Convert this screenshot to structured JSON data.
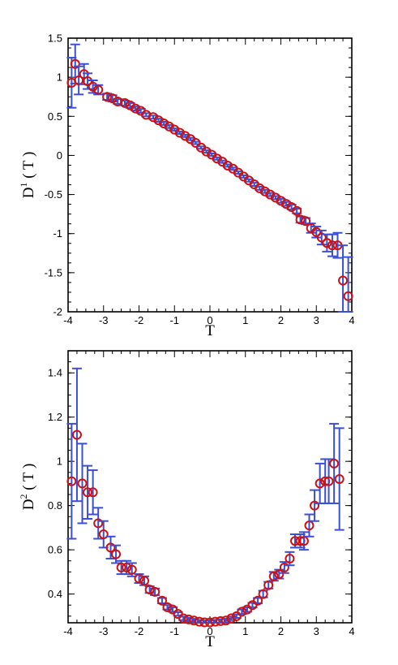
{
  "chart_data": [
    {
      "type": "scatter",
      "xlabel": "T",
      "ylabel": {
        "base": "D",
        "sup": "1",
        "rest": " ( T )"
      },
      "xlim": [
        -4,
        4
      ],
      "ylim": [
        -2,
        1.5
      ],
      "x_ticks": [
        -4,
        -3,
        -2,
        -1,
        0,
        1,
        2,
        3,
        4
      ],
      "x_tick_labels": [
        "-4",
        "-3",
        "-2",
        "-1",
        "0",
        "1",
        "2",
        "3",
        "4"
      ],
      "y_ticks": [
        -2,
        -1.5,
        -1,
        -0.5,
        0,
        0.5,
        1,
        1.5
      ],
      "y_tick_labels": [
        "-2",
        "-1.5",
        "-1",
        "-0.5",
        "0",
        "0.5",
        "1",
        "1.5"
      ],
      "grid": false,
      "colors": {
        "marker": "#d01010",
        "errorbar": "#3a4fd8"
      },
      "points": [
        {
          "x": -3.9,
          "y": 0.93,
          "err": 0.32
        },
        {
          "x": -3.8,
          "y": 1.17,
          "err": 0.25
        },
        {
          "x": -3.7,
          "y": 0.96,
          "err": 0.18
        },
        {
          "x": -3.55,
          "y": 1.04,
          "err": 0.13
        },
        {
          "x": -3.45,
          "y": 0.95,
          "err": 0.1
        },
        {
          "x": -3.3,
          "y": 0.88,
          "err": 0.08
        },
        {
          "x": -3.15,
          "y": 0.84,
          "err": 0.06
        },
        {
          "x": -2.9,
          "y": 0.75,
          "err": 0.04
        },
        {
          "x": -2.75,
          "y": 0.73,
          "err": 0.04
        },
        {
          "x": -2.6,
          "y": 0.69,
          "err": 0.03
        },
        {
          "x": -2.4,
          "y": 0.67,
          "err": 0.03
        },
        {
          "x": -2.25,
          "y": 0.64,
          "err": 0.03
        },
        {
          "x": -2.1,
          "y": 0.6,
          "err": 0.025
        },
        {
          "x": -1.95,
          "y": 0.57,
          "err": 0.025
        },
        {
          "x": -1.8,
          "y": 0.52,
          "err": 0.02
        },
        {
          "x": -1.6,
          "y": 0.49,
          "err": 0.02
        },
        {
          "x": -1.45,
          "y": 0.45,
          "err": 0.02
        },
        {
          "x": -1.3,
          "y": 0.41,
          "err": 0.02
        },
        {
          "x": -1.15,
          "y": 0.37,
          "err": 0.02
        },
        {
          "x": -1.0,
          "y": 0.33,
          "err": 0.015
        },
        {
          "x": -0.85,
          "y": 0.29,
          "err": 0.015
        },
        {
          "x": -0.7,
          "y": 0.25,
          "err": 0.015
        },
        {
          "x": -0.55,
          "y": 0.21,
          "err": 0.015
        },
        {
          "x": -0.4,
          "y": 0.16,
          "err": 0.015
        },
        {
          "x": -0.25,
          "y": 0.1,
          "err": 0.015
        },
        {
          "x": -0.1,
          "y": 0.05,
          "err": 0.015
        },
        {
          "x": 0.05,
          "y": 0.01,
          "err": 0.015
        },
        {
          "x": 0.2,
          "y": -0.04,
          "err": 0.015
        },
        {
          "x": 0.35,
          "y": -0.08,
          "err": 0.015
        },
        {
          "x": 0.5,
          "y": -0.13,
          "err": 0.015
        },
        {
          "x": 0.65,
          "y": -0.17,
          "err": 0.015
        },
        {
          "x": 0.8,
          "y": -0.22,
          "err": 0.015
        },
        {
          "x": 0.95,
          "y": -0.27,
          "err": 0.015
        },
        {
          "x": 1.1,
          "y": -0.32,
          "err": 0.015
        },
        {
          "x": 1.25,
          "y": -0.37,
          "err": 0.02
        },
        {
          "x": 1.4,
          "y": -0.42,
          "err": 0.02
        },
        {
          "x": 1.55,
          "y": -0.46,
          "err": 0.02
        },
        {
          "x": 1.7,
          "y": -0.5,
          "err": 0.02
        },
        {
          "x": 1.85,
          "y": -0.54,
          "err": 0.02
        },
        {
          "x": 2.0,
          "y": -0.58,
          "err": 0.025
        },
        {
          "x": 2.15,
          "y": -0.62,
          "err": 0.025
        },
        {
          "x": 2.3,
          "y": -0.66,
          "err": 0.03
        },
        {
          "x": 2.45,
          "y": -0.71,
          "err": 0.03
        },
        {
          "x": 2.55,
          "y": -0.82,
          "err": 0.04
        },
        {
          "x": 2.7,
          "y": -0.84,
          "err": 0.04
        },
        {
          "x": 2.85,
          "y": -0.93,
          "err": 0.06
        },
        {
          "x": 3.0,
          "y": -0.98,
          "err": 0.07
        },
        {
          "x": 3.15,
          "y": -1.05,
          "err": 0.09
        },
        {
          "x": 3.3,
          "y": -1.12,
          "err": 0.11
        },
        {
          "x": 3.45,
          "y": -1.15,
          "err": 0.14
        },
        {
          "x": 3.6,
          "y": -1.15,
          "err": 0.16
        },
        {
          "x": 3.75,
          "y": -1.6,
          "err": 0.45
        },
        {
          "x": 3.9,
          "y": -1.8,
          "err": 0.5
        }
      ]
    },
    {
      "type": "scatter",
      "xlabel": "T",
      "ylabel": {
        "base": "D",
        "sup": "2",
        "rest": " ( T )"
      },
      "xlim": [
        -4,
        4
      ],
      "ylim": [
        0.27,
        1.5
      ],
      "x_ticks": [
        -4,
        -3,
        -2,
        -1,
        0,
        1,
        2,
        3,
        4
      ],
      "x_tick_labels": [
        "-4",
        "-3",
        "-2",
        "-1",
        "0",
        "1",
        "2",
        "3",
        "4"
      ],
      "y_ticks": [
        0.4,
        0.6,
        0.8,
        1.0,
        1.2,
        1.4
      ],
      "y_tick_labels": [
        "0.4",
        "0.6",
        "0.8",
        "1",
        "1.2",
        "1.4"
      ],
      "grid": false,
      "colors": {
        "marker": "#d01010",
        "errorbar": "#3a4fd8"
      },
      "points": [
        {
          "x": -3.9,
          "y": 0.91,
          "err": 0.26
        },
        {
          "x": -3.75,
          "y": 1.12,
          "err": 0.3
        },
        {
          "x": -3.6,
          "y": 0.9,
          "err": 0.18
        },
        {
          "x": -3.45,
          "y": 0.86,
          "err": 0.12
        },
        {
          "x": -3.3,
          "y": 0.86,
          "err": 0.1
        },
        {
          "x": -3.15,
          "y": 0.72,
          "err": 0.07
        },
        {
          "x": -3.0,
          "y": 0.67,
          "err": 0.06
        },
        {
          "x": -2.8,
          "y": 0.61,
          "err": 0.05
        },
        {
          "x": -2.65,
          "y": 0.58,
          "err": 0.04
        },
        {
          "x": -2.5,
          "y": 0.52,
          "err": 0.03
        },
        {
          "x": -2.35,
          "y": 0.52,
          "err": 0.03
        },
        {
          "x": -2.2,
          "y": 0.51,
          "err": 0.03
        },
        {
          "x": -2.0,
          "y": 0.47,
          "err": 0.02
        },
        {
          "x": -1.85,
          "y": 0.46,
          "err": 0.02
        },
        {
          "x": -1.7,
          "y": 0.42,
          "err": 0.015
        },
        {
          "x": -1.55,
          "y": 0.41,
          "err": 0.015
        },
        {
          "x": -1.35,
          "y": 0.37,
          "err": 0.012
        },
        {
          "x": -1.2,
          "y": 0.34,
          "err": 0.01
        },
        {
          "x": -1.05,
          "y": 0.33,
          "err": 0.01
        },
        {
          "x": -0.9,
          "y": 0.31,
          "err": 0.008
        },
        {
          "x": -0.75,
          "y": 0.29,
          "err": 0.008
        },
        {
          "x": -0.6,
          "y": 0.285,
          "err": 0.008
        },
        {
          "x": -0.45,
          "y": 0.28,
          "err": 0.008
        },
        {
          "x": -0.3,
          "y": 0.275,
          "err": 0.008
        },
        {
          "x": -0.15,
          "y": 0.272,
          "err": 0.008
        },
        {
          "x": 0.0,
          "y": 0.272,
          "err": 0.008
        },
        {
          "x": 0.15,
          "y": 0.275,
          "err": 0.008
        },
        {
          "x": 0.3,
          "y": 0.278,
          "err": 0.008
        },
        {
          "x": 0.45,
          "y": 0.28,
          "err": 0.008
        },
        {
          "x": 0.6,
          "y": 0.29,
          "err": 0.008
        },
        {
          "x": 0.75,
          "y": 0.3,
          "err": 0.008
        },
        {
          "x": 0.9,
          "y": 0.32,
          "err": 0.01
        },
        {
          "x": 1.05,
          "y": 0.33,
          "err": 0.01
        },
        {
          "x": 1.2,
          "y": 0.35,
          "err": 0.01
        },
        {
          "x": 1.35,
          "y": 0.37,
          "err": 0.012
        },
        {
          "x": 1.5,
          "y": 0.4,
          "err": 0.015
        },
        {
          "x": 1.65,
          "y": 0.44,
          "err": 0.015
        },
        {
          "x": 1.8,
          "y": 0.48,
          "err": 0.02
        },
        {
          "x": 1.95,
          "y": 0.49,
          "err": 0.02
        },
        {
          "x": 2.1,
          "y": 0.52,
          "err": 0.025
        },
        {
          "x": 2.25,
          "y": 0.56,
          "err": 0.03
        },
        {
          "x": 2.4,
          "y": 0.64,
          "err": 0.03
        },
        {
          "x": 2.55,
          "y": 0.64,
          "err": 0.03
        },
        {
          "x": 2.65,
          "y": 0.64,
          "err": 0.04
        },
        {
          "x": 2.8,
          "y": 0.71,
          "err": 0.05
        },
        {
          "x": 2.95,
          "y": 0.8,
          "err": 0.07
        },
        {
          "x": 3.1,
          "y": 0.9,
          "err": 0.09
        },
        {
          "x": 3.25,
          "y": 0.91,
          "err": 0.1
        },
        {
          "x": 3.35,
          "y": 0.91,
          "err": 0.1
        },
        {
          "x": 3.5,
          "y": 0.99,
          "err": 0.18
        },
        {
          "x": 3.65,
          "y": 0.92,
          "err": 0.23
        }
      ]
    }
  ]
}
